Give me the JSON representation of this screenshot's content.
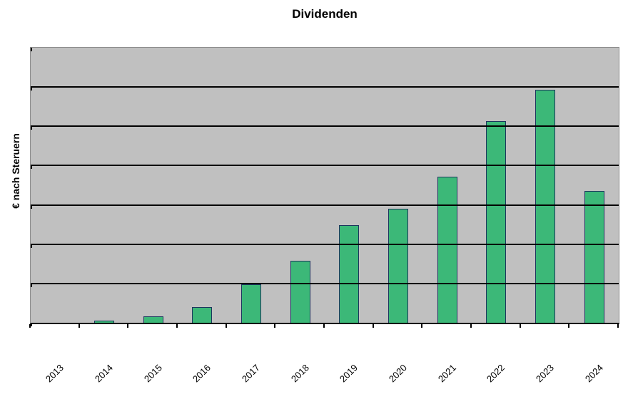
{
  "chart_data": {
    "type": "bar",
    "title": "Dividenden",
    "xlabel": "",
    "ylabel": "€ nach Steruern",
    "categories": [
      "2013",
      "2014",
      "2015",
      "2016",
      "2017",
      "2018",
      "2019",
      "2020",
      "2021",
      "2022",
      "2023",
      "2024"
    ],
    "values": [
      0,
      0.05,
      0.16,
      0.4,
      0.98,
      1.57,
      2.48,
      2.91,
      3.71,
      5.14,
      5.93,
      3.36
    ],
    "ylim": [
      0,
      7
    ],
    "y_gridline_interval": 1,
    "y_tick_labels_visible": false,
    "grid": "horizontal-black-lines",
    "legend": "none",
    "notes": "single series, no data labels, no y-axis value labels shown",
    "colors": {
      "bar_fill": "#3cb878",
      "bar_border": "#1c355e",
      "plot_background": "#c0c0c0",
      "gridline": "#000000",
      "text": "#000000",
      "page_background": "#ffffff"
    }
  }
}
